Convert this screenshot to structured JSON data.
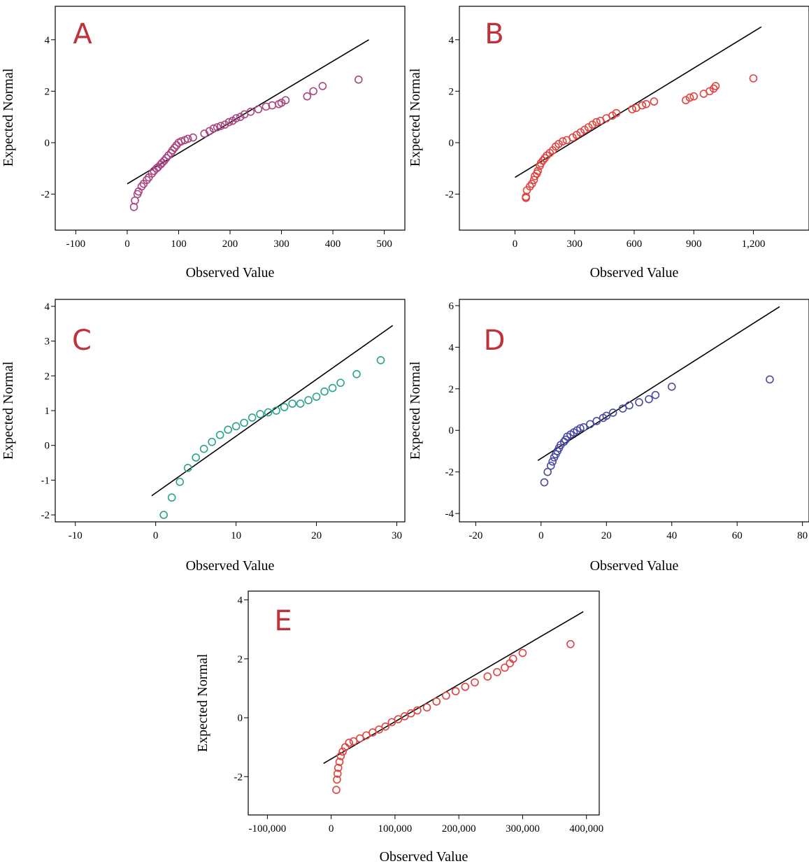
{
  "chart_data": [
    {
      "id": "A",
      "type": "scatter",
      "panel_label": "A",
      "xlabel": "Observed Value",
      "ylabel": "Expected Normal",
      "xlim": [
        -140,
        540
      ],
      "ylim": [
        -3.4,
        5.3
      ],
      "xticks": [
        -100,
        0,
        100,
        200,
        300,
        400,
        500
      ],
      "xtick_labels": [
        "-100",
        "0",
        "100",
        "200",
        "300",
        "400",
        "500"
      ],
      "yticks": [
        -2,
        0,
        2,
        4
      ],
      "ytick_labels": [
        "-2",
        "0",
        "2",
        "4"
      ],
      "point_color": "#a8447f",
      "label_color": "#c0323a",
      "line": [
        [
          0,
          -1.6
        ],
        [
          470,
          4.0
        ]
      ],
      "points": [
        [
          13,
          -2.5
        ],
        [
          15,
          -2.25
        ],
        [
          20,
          -2.0
        ],
        [
          22,
          -1.9
        ],
        [
          28,
          -1.7
        ],
        [
          32,
          -1.6
        ],
        [
          38,
          -1.45
        ],
        [
          42,
          -1.35
        ],
        [
          48,
          -1.2
        ],
        [
          52,
          -1.1
        ],
        [
          57,
          -1.0
        ],
        [
          60,
          -0.95
        ],
        [
          65,
          -0.85
        ],
        [
          68,
          -0.78
        ],
        [
          72,
          -0.7
        ],
        [
          76,
          -0.6
        ],
        [
          80,
          -0.5
        ],
        [
          85,
          -0.4
        ],
        [
          88,
          -0.3
        ],
        [
          92,
          -0.2
        ],
        [
          96,
          -0.1
        ],
        [
          100,
          0.0
        ],
        [
          105,
          0.05
        ],
        [
          112,
          0.1
        ],
        [
          118,
          0.15
        ],
        [
          128,
          0.2
        ],
        [
          150,
          0.35
        ],
        [
          160,
          0.45
        ],
        [
          168,
          0.55
        ],
        [
          175,
          0.6
        ],
        [
          182,
          0.65
        ],
        [
          190,
          0.7
        ],
        [
          198,
          0.8
        ],
        [
          205,
          0.85
        ],
        [
          212,
          0.95
        ],
        [
          220,
          1.0
        ],
        [
          228,
          1.1
        ],
        [
          240,
          1.2
        ],
        [
          255,
          1.3
        ],
        [
          270,
          1.4
        ],
        [
          282,
          1.45
        ],
        [
          295,
          1.5
        ],
        [
          300,
          1.55
        ],
        [
          308,
          1.65
        ],
        [
          350,
          1.8
        ],
        [
          362,
          2.0
        ],
        [
          380,
          2.2
        ],
        [
          450,
          2.45
        ]
      ]
    },
    {
      "id": "B",
      "type": "scatter",
      "panel_label": "B",
      "xlabel": "Observed Value",
      "ylabel": "Expected Normal",
      "xlim": [
        -280,
        1480
      ],
      "ylim": [
        -3.4,
        5.3
      ],
      "xticks": [
        0,
        300,
        600,
        900,
        1200
      ],
      "xtick_labels": [
        "0",
        "300",
        "600",
        "900",
        "1,200"
      ],
      "yticks": [
        -2,
        0,
        2,
        4
      ],
      "ytick_labels": [
        "-2",
        "0",
        "2",
        "4"
      ],
      "point_color": "#e0433f",
      "label_color": "#c0323a",
      "line": [
        [
          0,
          -1.35
        ],
        [
          1240,
          4.5
        ]
      ],
      "points": [
        [
          55,
          -2.15
        ],
        [
          55,
          -2.1
        ],
        [
          60,
          -1.85
        ],
        [
          75,
          -1.7
        ],
        [
          85,
          -1.6
        ],
        [
          95,
          -1.45
        ],
        [
          100,
          -1.3
        ],
        [
          110,
          -1.2
        ],
        [
          115,
          -1.1
        ],
        [
          125,
          -0.9
        ],
        [
          130,
          -0.8
        ],
        [
          140,
          -0.7
        ],
        [
          150,
          -0.6
        ],
        [
          160,
          -0.5
        ],
        [
          175,
          -0.4
        ],
        [
          190,
          -0.3
        ],
        [
          205,
          -0.15
        ],
        [
          220,
          -0.05
        ],
        [
          240,
          0.05
        ],
        [
          260,
          0.1
        ],
        [
          290,
          0.2
        ],
        [
          310,
          0.3
        ],
        [
          330,
          0.4
        ],
        [
          350,
          0.5
        ],
        [
          370,
          0.6
        ],
        [
          390,
          0.7
        ],
        [
          410,
          0.8
        ],
        [
          430,
          0.85
        ],
        [
          460,
          0.95
        ],
        [
          490,
          1.05
        ],
        [
          510,
          1.15
        ],
        [
          590,
          1.3
        ],
        [
          610,
          1.35
        ],
        [
          640,
          1.45
        ],
        [
          660,
          1.5
        ],
        [
          700,
          1.6
        ],
        [
          860,
          1.65
        ],
        [
          880,
          1.75
        ],
        [
          900,
          1.8
        ],
        [
          950,
          1.9
        ],
        [
          980,
          2.0
        ],
        [
          1000,
          2.1
        ],
        [
          1010,
          2.2
        ],
        [
          1200,
          2.5
        ]
      ]
    },
    {
      "id": "C",
      "type": "scatter",
      "panel_label": "C",
      "xlabel": "Observed Value",
      "ylabel": "Expected Normal",
      "xlim": [
        -12.5,
        31
      ],
      "ylim": [
        -2.2,
        4.2
      ],
      "xticks": [
        -10,
        0,
        10,
        20,
        30
      ],
      "xtick_labels": [
        "-10",
        "0",
        "10",
        "20",
        "30"
      ],
      "yticks": [
        -2,
        -1,
        0,
        1,
        2,
        3,
        4
      ],
      "ytick_labels": [
        "-2",
        "-1",
        "0",
        "1",
        "2",
        "3",
        "4"
      ],
      "point_color": "#2aa28c",
      "label_color": "#c0323a",
      "line": [
        [
          -0.5,
          -1.45
        ],
        [
          29.5,
          3.45
        ]
      ],
      "points": [
        [
          1,
          -2.0
        ],
        [
          2,
          -1.5
        ],
        [
          3,
          -1.05
        ],
        [
          4,
          -0.65
        ],
        [
          5,
          -0.35
        ],
        [
          6,
          -0.1
        ],
        [
          7,
          0.1
        ],
        [
          8,
          0.3
        ],
        [
          9,
          0.45
        ],
        [
          10,
          0.55
        ],
        [
          11,
          0.65
        ],
        [
          12,
          0.8
        ],
        [
          13,
          0.9
        ],
        [
          14,
          0.95
        ],
        [
          15,
          1.0
        ],
        [
          16,
          1.1
        ],
        [
          17,
          1.2
        ],
        [
          18,
          1.2
        ],
        [
          19,
          1.3
        ],
        [
          20,
          1.4
        ],
        [
          21,
          1.55
        ],
        [
          22,
          1.65
        ],
        [
          23,
          1.8
        ],
        [
          25,
          2.05
        ],
        [
          28,
          2.45
        ]
      ]
    },
    {
      "id": "D",
      "type": "scatter",
      "panel_label": "D",
      "xlabel": "Observed Value",
      "ylabel": "Expected Normal",
      "xlim": [
        -25,
        82
      ],
      "ylim": [
        -4.4,
        6.3
      ],
      "xticks": [
        -20,
        0,
        20,
        40,
        60,
        80
      ],
      "xtick_labels": [
        "-20",
        "0",
        "20",
        "40",
        "60",
        "80"
      ],
      "yticks": [
        -4,
        -2,
        0,
        2,
        4,
        6
      ],
      "ytick_labels": [
        "-4",
        "-2",
        "0",
        "2",
        "4",
        "6"
      ],
      "point_color": "#4a4ba0",
      "label_color": "#c0323a",
      "line": [
        [
          -1,
          -1.45
        ],
        [
          73,
          5.95
        ]
      ],
      "points": [
        [
          1,
          -2.5
        ],
        [
          2,
          -2.0
        ],
        [
          3,
          -1.7
        ],
        [
          3.5,
          -1.5
        ],
        [
          4,
          -1.3
        ],
        [
          4.5,
          -1.15
        ],
        [
          5,
          -1.0
        ],
        [
          5.5,
          -0.85
        ],
        [
          6,
          -0.7
        ],
        [
          7,
          -0.55
        ],
        [
          7.5,
          -0.45
        ],
        [
          8,
          -0.3
        ],
        [
          9,
          -0.2
        ],
        [
          10,
          -0.1
        ],
        [
          11,
          0.0
        ],
        [
          12,
          0.1
        ],
        [
          13,
          0.15
        ],
        [
          15,
          0.3
        ],
        [
          17,
          0.45
        ],
        [
          19,
          0.6
        ],
        [
          20,
          0.7
        ],
        [
          22,
          0.85
        ],
        [
          25,
          1.05
        ],
        [
          27,
          1.2
        ],
        [
          30,
          1.35
        ],
        [
          33,
          1.5
        ],
        [
          35,
          1.7
        ],
        [
          40,
          2.1
        ],
        [
          70,
          2.45
        ]
      ]
    },
    {
      "id": "E",
      "type": "scatter",
      "panel_label": "E",
      "xlabel": "Observed Value",
      "ylabel": "Expected Normal",
      "xlim": [
        -130000,
        420000
      ],
      "ylim": [
        -3.3,
        4.3
      ],
      "xticks": [
        -100000,
        0,
        100000,
        200000,
        300000,
        400000
      ],
      "xtick_labels": [
        "-100,000",
        "0",
        "100,000",
        "200,000",
        "300,000",
        "400,000"
      ],
      "yticks": [
        -2,
        0,
        2,
        4
      ],
      "ytick_labels": [
        "-2",
        "0",
        "2",
        "4"
      ],
      "point_color": "#e0433f",
      "label_color": "#c0323a",
      "line": [
        [
          -12000,
          -1.55
        ],
        [
          395000,
          3.6
        ]
      ],
      "points": [
        [
          8000,
          -2.45
        ],
        [
          9000,
          -2.1
        ],
        [
          10000,
          -1.9
        ],
        [
          11000,
          -1.7
        ],
        [
          13000,
          -1.5
        ],
        [
          15000,
          -1.3
        ],
        [
          18000,
          -1.15
        ],
        [
          22000,
          -1.0
        ],
        [
          28000,
          -0.85
        ],
        [
          35000,
          -0.8
        ],
        [
          45000,
          -0.7
        ],
        [
          55000,
          -0.6
        ],
        [
          65000,
          -0.5
        ],
        [
          75000,
          -0.4
        ],
        [
          85000,
          -0.3
        ],
        [
          95000,
          -0.15
        ],
        [
          105000,
          -0.05
        ],
        [
          115000,
          0.05
        ],
        [
          125000,
          0.15
        ],
        [
          135000,
          0.25
        ],
        [
          150000,
          0.35
        ],
        [
          165000,
          0.55
        ],
        [
          180000,
          0.75
        ],
        [
          195000,
          0.9
        ],
        [
          210000,
          1.05
        ],
        [
          225000,
          1.2
        ],
        [
          245000,
          1.4
        ],
        [
          260000,
          1.55
        ],
        [
          272000,
          1.7
        ],
        [
          280000,
          1.85
        ],
        [
          285000,
          2.0
        ],
        [
          300000,
          2.2
        ],
        [
          375000,
          2.5
        ]
      ]
    }
  ]
}
